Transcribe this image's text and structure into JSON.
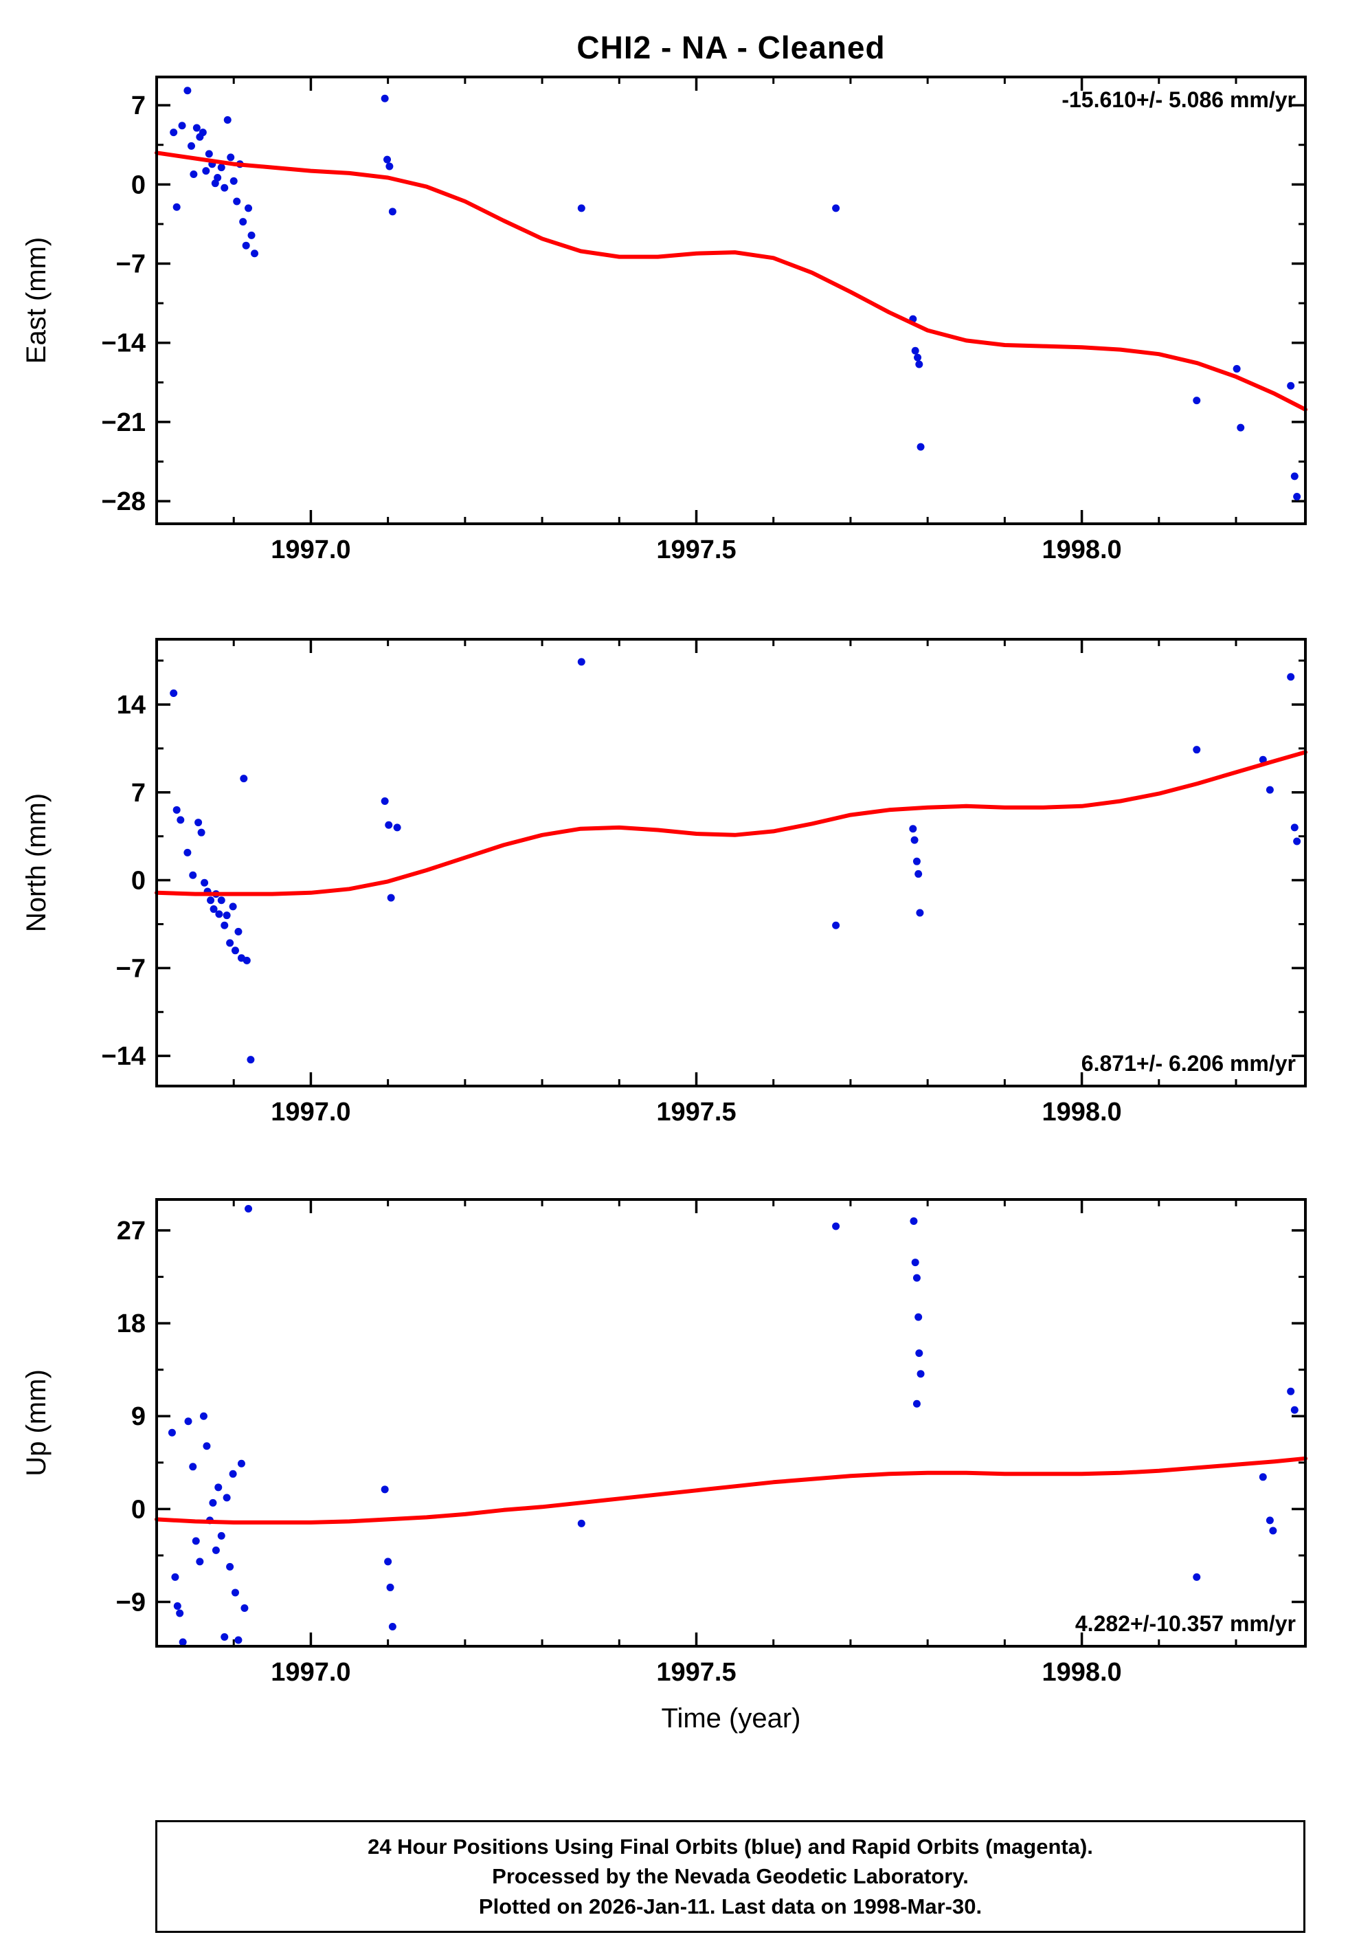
{
  "title": "CHI2  - NA - Cleaned",
  "colors": {
    "points_blue": "#0010dd",
    "trend_red": "#ff0000",
    "frame": "#000000"
  },
  "footer": {
    "lines": [
      "24 Hour Positions Using Final Orbits (blue) and Rapid Orbits (magenta).",
      "Processed by the Nevada Geodetic Laboratory.",
      "Plotted on 2026-Jan-11. Last data on 1998-Mar-30."
    ]
  },
  "chart_data": [
    {
      "type": "scatter",
      "name": "east",
      "ylabel": "East (mm)",
      "xlabel": "",
      "annotation": "-15.610+/- 5.086 mm/yr",
      "annotation_pos": "top-right",
      "xlim": [
        1996.8,
        1998.29
      ],
      "x_ticks": [
        1997.0,
        1997.5,
        1998.0
      ],
      "x_tick_labels": [
        "1997.0",
        "1997.5",
        "1998.0"
      ],
      "x_minor_step": 0.1,
      "ylim": [
        -30.0,
        9.5
      ],
      "y_ticks": [
        7,
        0,
        -7,
        -14,
        -21,
        -28
      ],
      "y_tick_labels": [
        "7",
        "0",
        "−7",
        "−14",
        "−21",
        "−28"
      ],
      "y_minor_step": 3.5,
      "points": [
        [
          1996.822,
          4.6
        ],
        [
          1996.826,
          -2.0
        ],
        [
          1996.833,
          5.2
        ],
        [
          1996.84,
          8.3
        ],
        [
          1996.845,
          3.4
        ],
        [
          1996.848,
          0.9
        ],
        [
          1996.852,
          5.0
        ],
        [
          1996.856,
          4.2
        ],
        [
          1996.86,
          4.6
        ],
        [
          1996.864,
          1.2
        ],
        [
          1996.868,
          2.7
        ],
        [
          1996.872,
          1.8
        ],
        [
          1996.876,
          0.1
        ],
        [
          1996.879,
          0.6
        ],
        [
          1996.884,
          1.5
        ],
        [
          1996.888,
          -0.3
        ],
        [
          1996.892,
          5.7
        ],
        [
          1996.896,
          2.4
        ],
        [
          1996.9,
          0.3
        ],
        [
          1996.904,
          -1.5
        ],
        [
          1996.908,
          1.8
        ],
        [
          1996.912,
          -3.3
        ],
        [
          1996.916,
          -5.4
        ],
        [
          1996.919,
          -2.1
        ],
        [
          1996.923,
          -4.5
        ],
        [
          1996.927,
          -6.1
        ],
        [
          1997.096,
          7.6
        ],
        [
          1997.099,
          2.2
        ],
        [
          1997.102,
          1.6
        ],
        [
          1997.106,
          -2.4
        ],
        [
          1997.351,
          -2.1
        ],
        [
          1997.681,
          -2.1
        ],
        [
          1997.781,
          -11.9
        ],
        [
          1997.784,
          -14.7
        ],
        [
          1997.787,
          -15.3
        ],
        [
          1997.789,
          -15.9
        ],
        [
          1997.791,
          -23.2
        ],
        [
          1998.149,
          -19.1
        ],
        [
          1998.201,
          -16.3
        ],
        [
          1998.206,
          -21.5
        ],
        [
          1998.271,
          -17.8
        ],
        [
          1998.276,
          -25.8
        ],
        [
          1998.279,
          -27.6
        ]
      ],
      "trend": [
        [
          1996.8,
          2.8
        ],
        [
          1996.85,
          2.3
        ],
        [
          1996.9,
          1.8
        ],
        [
          1996.95,
          1.5
        ],
        [
          1997.0,
          1.2
        ],
        [
          1997.05,
          1.0
        ],
        [
          1997.1,
          0.6
        ],
        [
          1997.15,
          -0.2
        ],
        [
          1997.2,
          -1.5
        ],
        [
          1997.25,
          -3.2
        ],
        [
          1997.3,
          -4.8
        ],
        [
          1997.35,
          -5.9
        ],
        [
          1997.4,
          -6.4
        ],
        [
          1997.45,
          -6.4
        ],
        [
          1997.5,
          -6.1
        ],
        [
          1997.55,
          -6.0
        ],
        [
          1997.6,
          -6.5
        ],
        [
          1997.65,
          -7.8
        ],
        [
          1997.7,
          -9.5
        ],
        [
          1997.75,
          -11.3
        ],
        [
          1997.8,
          -12.9
        ],
        [
          1997.85,
          -13.8
        ],
        [
          1997.9,
          -14.2
        ],
        [
          1997.95,
          -14.3
        ],
        [
          1998.0,
          -14.4
        ],
        [
          1998.05,
          -14.6
        ],
        [
          1998.1,
          -15.0
        ],
        [
          1998.15,
          -15.8
        ],
        [
          1998.2,
          -17.0
        ],
        [
          1998.25,
          -18.5
        ],
        [
          1998.29,
          -19.9
        ]
      ]
    },
    {
      "type": "scatter",
      "name": "north",
      "ylabel": "North (mm)",
      "xlabel": "",
      "annotation": "6.871+/- 6.206 mm/yr",
      "annotation_pos": "bottom-right",
      "xlim": [
        1996.8,
        1998.29
      ],
      "x_ticks": [
        1997.0,
        1997.5,
        1998.0
      ],
      "x_tick_labels": [
        "1997.0",
        "1997.5",
        "1998.0"
      ],
      "x_minor_step": 0.1,
      "ylim": [
        -16.4,
        19.2
      ],
      "y_ticks": [
        14,
        7,
        0,
        -7,
        -14
      ],
      "y_tick_labels": [
        "14",
        "7",
        "0",
        "−7",
        "−14"
      ],
      "y_minor_step": 3.5,
      "points": [
        [
          1996.822,
          14.9
        ],
        [
          1996.826,
          5.6
        ],
        [
          1996.831,
          4.8
        ],
        [
          1996.84,
          2.2
        ],
        [
          1996.847,
          0.4
        ],
        [
          1996.854,
          4.6
        ],
        [
          1996.858,
          3.8
        ],
        [
          1996.862,
          -0.2
        ],
        [
          1996.866,
          -0.9
        ],
        [
          1996.87,
          -1.6
        ],
        [
          1996.874,
          -2.3
        ],
        [
          1996.877,
          -1.1
        ],
        [
          1996.881,
          -2.7
        ],
        [
          1996.884,
          -1.6
        ],
        [
          1996.888,
          -3.6
        ],
        [
          1996.891,
          -2.8
        ],
        [
          1996.895,
          -5.0
        ],
        [
          1996.899,
          -2.1
        ],
        [
          1996.902,
          -5.6
        ],
        [
          1996.906,
          -4.1
        ],
        [
          1996.91,
          -6.2
        ],
        [
          1996.913,
          8.1
        ],
        [
          1996.917,
          -6.4
        ],
        [
          1996.922,
          -14.3
        ],
        [
          1997.096,
          6.3
        ],
        [
          1997.101,
          4.4
        ],
        [
          1997.104,
          -1.4
        ],
        [
          1997.112,
          4.2
        ],
        [
          1997.351,
          17.4
        ],
        [
          1997.681,
          -3.6
        ],
        [
          1997.781,
          4.1
        ],
        [
          1997.783,
          3.2
        ],
        [
          1997.786,
          1.5
        ],
        [
          1997.788,
          0.5
        ],
        [
          1997.79,
          -2.6
        ],
        [
          1998.149,
          10.4
        ],
        [
          1998.235,
          9.6
        ],
        [
          1998.244,
          7.2
        ],
        [
          1998.271,
          16.2
        ],
        [
          1998.276,
          4.2
        ],
        [
          1998.279,
          3.1
        ]
      ],
      "trend": [
        [
          1996.8,
          -1.0
        ],
        [
          1996.85,
          -1.1
        ],
        [
          1996.9,
          -1.1
        ],
        [
          1996.95,
          -1.1
        ],
        [
          1997.0,
          -1.0
        ],
        [
          1997.05,
          -0.7
        ],
        [
          1997.1,
          -0.1
        ],
        [
          1997.15,
          0.8
        ],
        [
          1997.2,
          1.8
        ],
        [
          1997.25,
          2.8
        ],
        [
          1997.3,
          3.6
        ],
        [
          1997.35,
          4.1
        ],
        [
          1997.4,
          4.2
        ],
        [
          1997.45,
          4.0
        ],
        [
          1997.5,
          3.7
        ],
        [
          1997.55,
          3.6
        ],
        [
          1997.6,
          3.9
        ],
        [
          1997.65,
          4.5
        ],
        [
          1997.7,
          5.2
        ],
        [
          1997.75,
          5.6
        ],
        [
          1997.8,
          5.8
        ],
        [
          1997.85,
          5.9
        ],
        [
          1997.9,
          5.8
        ],
        [
          1997.95,
          5.8
        ],
        [
          1998.0,
          5.9
        ],
        [
          1998.05,
          6.3
        ],
        [
          1998.1,
          6.9
        ],
        [
          1998.15,
          7.7
        ],
        [
          1998.2,
          8.6
        ],
        [
          1998.25,
          9.5
        ],
        [
          1998.29,
          10.2
        ]
      ]
    },
    {
      "type": "scatter",
      "name": "up",
      "ylabel": "Up (mm)",
      "xlabel": "Time (year)",
      "annotation": "4.282+/-10.357 mm/yr",
      "annotation_pos": "bottom-right",
      "xlim": [
        1996.8,
        1998.29
      ],
      "x_ticks": [
        1997.0,
        1997.5,
        1998.0
      ],
      "x_tick_labels": [
        "1997.0",
        "1997.5",
        "1998.0"
      ],
      "x_minor_step": 0.1,
      "ylim": [
        -13.3,
        30.0
      ],
      "y_ticks": [
        27,
        18,
        9,
        0,
        -9
      ],
      "y_tick_labels": [
        "27",
        "18",
        "9",
        "0",
        "−9"
      ],
      "y_minor_step": 4.5,
      "points": [
        [
          1996.82,
          7.4
        ],
        [
          1996.824,
          -6.6
        ],
        [
          1996.827,
          -9.4
        ],
        [
          1996.83,
          -10.1
        ],
        [
          1996.834,
          -12.9
        ],
        [
          1996.841,
          8.5
        ],
        [
          1996.847,
          4.1
        ],
        [
          1996.851,
          -3.1
        ],
        [
          1996.856,
          -5.1
        ],
        [
          1996.861,
          9.0
        ],
        [
          1996.865,
          6.1
        ],
        [
          1996.869,
          -1.1
        ],
        [
          1996.873,
          0.6
        ],
        [
          1996.877,
          -4.0
        ],
        [
          1996.88,
          2.1
        ],
        [
          1996.884,
          -2.6
        ],
        [
          1996.888,
          -12.4
        ],
        [
          1996.891,
          1.1
        ],
        [
          1996.895,
          -5.6
        ],
        [
          1996.899,
          3.4
        ],
        [
          1996.902,
          -8.1
        ],
        [
          1996.906,
          -12.7
        ],
        [
          1996.91,
          4.4
        ],
        [
          1996.914,
          -9.6
        ],
        [
          1996.919,
          29.1
        ],
        [
          1997.096,
          1.9
        ],
        [
          1997.1,
          -5.1
        ],
        [
          1997.103,
          -7.6
        ],
        [
          1997.106,
          -11.4
        ],
        [
          1997.351,
          -1.4
        ],
        [
          1997.681,
          27.4
        ],
        [
          1997.782,
          27.9
        ],
        [
          1997.784,
          23.9
        ],
        [
          1997.786,
          22.4
        ],
        [
          1997.788,
          18.6
        ],
        [
          1997.789,
          15.1
        ],
        [
          1997.791,
          13.1
        ],
        [
          1997.786,
          10.2
        ],
        [
          1998.149,
          -6.6
        ],
        [
          1998.235,
          3.1
        ],
        [
          1998.244,
          -1.1
        ],
        [
          1998.248,
          -2.1
        ],
        [
          1998.271,
          11.4
        ],
        [
          1998.276,
          9.6
        ]
      ],
      "trend": [
        [
          1996.8,
          -1.0
        ],
        [
          1996.85,
          -1.2
        ],
        [
          1996.9,
          -1.3
        ],
        [
          1996.95,
          -1.3
        ],
        [
          1997.0,
          -1.3
        ],
        [
          1997.05,
          -1.2
        ],
        [
          1997.1,
          -1.0
        ],
        [
          1997.15,
          -0.8
        ],
        [
          1997.2,
          -0.5
        ],
        [
          1997.25,
          -0.1
        ],
        [
          1997.3,
          0.2
        ],
        [
          1997.35,
          0.6
        ],
        [
          1997.4,
          1.0
        ],
        [
          1997.45,
          1.4
        ],
        [
          1997.5,
          1.8
        ],
        [
          1997.55,
          2.2
        ],
        [
          1997.6,
          2.6
        ],
        [
          1997.65,
          2.9
        ],
        [
          1997.7,
          3.2
        ],
        [
          1997.75,
          3.4
        ],
        [
          1997.8,
          3.5
        ],
        [
          1997.85,
          3.5
        ],
        [
          1997.9,
          3.4
        ],
        [
          1997.95,
          3.4
        ],
        [
          1998.0,
          3.4
        ],
        [
          1998.05,
          3.5
        ],
        [
          1998.1,
          3.7
        ],
        [
          1998.15,
          4.0
        ],
        [
          1998.2,
          4.3
        ],
        [
          1998.25,
          4.6
        ],
        [
          1998.29,
          4.9
        ]
      ]
    }
  ]
}
